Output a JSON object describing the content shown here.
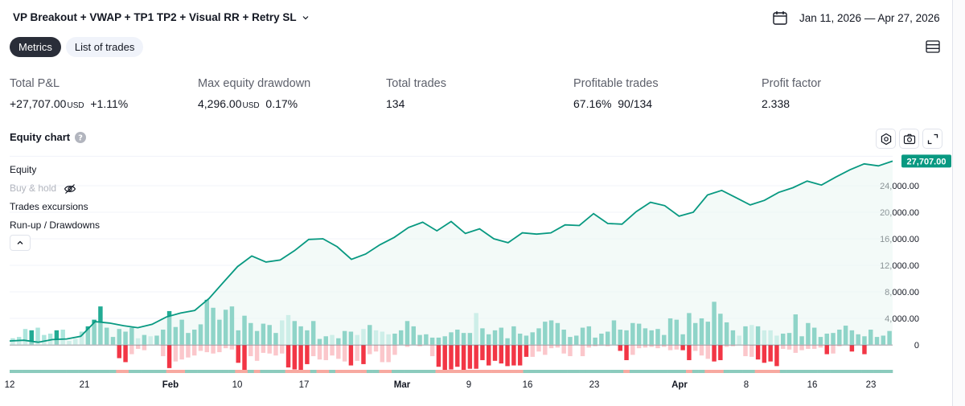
{
  "header": {
    "strategy_title": "VP Breakout + VWAP + TP1 TP2 + Visual RR + Retry SL",
    "date_range": "Jan 11, 2026 — Apr 27, 2026"
  },
  "tabs": [
    {
      "label": "Metrics",
      "active": true
    },
    {
      "label": "List of trades",
      "active": false
    }
  ],
  "metrics": [
    {
      "label": "Total P&L",
      "value": "+27,707.00",
      "unit": "USD",
      "extra": "+1.11%"
    },
    {
      "label": "Max equity drawdown",
      "value": "4,296.00",
      "unit": "USD",
      "extra": "0.17%"
    },
    {
      "label": "Total trades",
      "value": "134"
    },
    {
      "label": "Profitable trades",
      "value": "67.16%",
      "extra": "90/134"
    },
    {
      "label": "Profit factor",
      "value": "2.338"
    }
  ],
  "equity_chart": {
    "title": "Equity chart",
    "legend": [
      "Equity",
      "Buy & hold",
      "Trades excursions",
      "Run-up / Drawdowns"
    ],
    "last_value_label": "27,707.00"
  },
  "colors": {
    "equity_line": "#089981",
    "equity_fill": "#eaf5f3",
    "runup_bar": "#22ab94",
    "runup_bar_light": "#ace5dc",
    "drawdown_bar": "#f23645",
    "drawdown_bar_light": "#fbc7cb",
    "price_tag": "#089981"
  },
  "chart_data": {
    "type": "line",
    "title": "Equity chart",
    "ylim": [
      0,
      30000
    ],
    "y_ticks": [
      0,
      4000,
      8000,
      12000,
      16000,
      20000,
      24000
    ],
    "y_tick_labels": [
      "0",
      "4,000.00",
      "8,000.00",
      "12,000.00",
      "16,000.00",
      "20,000.00",
      "24,000.00"
    ],
    "x_ticks": [
      "12",
      "21",
      "Feb",
      "10",
      "17",
      "Mar",
      "9",
      "16",
      "23",
      "Apr",
      "8",
      "16",
      "23"
    ],
    "series": [
      {
        "name": "Equity",
        "values": [
          600,
          700,
          400,
          800,
          900,
          1300,
          3500,
          3300,
          2900,
          2600,
          3100,
          4200,
          4800,
          5200,
          7000,
          9400,
          11800,
          13400,
          12500,
          12800,
          14200,
          15900,
          16000,
          14800,
          12900,
          13700,
          15100,
          16200,
          17700,
          18500,
          17200,
          18600,
          16800,
          17500,
          16000,
          15400,
          16900,
          16700,
          16900,
          18100,
          18000,
          19800,
          18300,
          18200,
          20100,
          21500,
          21000,
          19400,
          20000,
          22600,
          23300,
          22200,
          21100,
          21800,
          23000,
          23700,
          24700,
          24100,
          25300,
          26400,
          27300,
          27000,
          27707
        ]
      }
    ],
    "run_up_bars": [
      [
        1000,
        "L"
      ],
      [
        1200,
        "L"
      ],
      [
        2400,
        "L"
      ],
      [
        2200,
        "D"
      ],
      [
        2600,
        "L"
      ],
      [
        1500,
        "L"
      ],
      [
        1700,
        "L"
      ],
      [
        2200,
        "D"
      ],
      [
        2300,
        "L"
      ],
      [
        600,
        "L"
      ],
      [
        900,
        "L"
      ],
      [
        2000,
        "L"
      ],
      [
        2800,
        "D"
      ],
      [
        3800,
        "D"
      ],
      [
        5800,
        "D"
      ],
      [
        2600,
        "D"
      ],
      [
        1200,
        "D"
      ],
      [
        2400,
        "D"
      ],
      [
        2000,
        "D"
      ],
      [
        2600,
        "D"
      ],
      [
        1000,
        "L"
      ],
      [
        1500,
        "D"
      ],
      [
        1300,
        "L"
      ],
      [
        1400,
        "D"
      ],
      [
        2300,
        "D"
      ],
      [
        5100,
        "D"
      ],
      [
        2700,
        "D"
      ],
      [
        3800,
        "D"
      ],
      [
        1800,
        "D"
      ],
      [
        2300,
        "D"
      ],
      [
        3100,
        "D"
      ],
      [
        6800,
        "D"
      ],
      [
        5600,
        "D"
      ],
      [
        3800,
        "D"
      ],
      [
        5300,
        "D"
      ],
      [
        5800,
        "D"
      ],
      [
        2200,
        "D"
      ],
      [
        4400,
        "D"
      ],
      [
        3300,
        "D"
      ],
      [
        2100,
        "D"
      ],
      [
        3200,
        "D"
      ],
      [
        3000,
        "D"
      ],
      [
        1800,
        "D"
      ],
      [
        3700,
        "L"
      ],
      [
        4500,
        "L"
      ],
      [
        3600,
        "D"
      ],
      [
        2800,
        "D"
      ],
      [
        2200,
        "D"
      ],
      [
        3600,
        "D"
      ],
      [
        900,
        "D"
      ],
      [
        1300,
        "D"
      ],
      [
        1500,
        "L"
      ],
      [
        1000,
        "D"
      ],
      [
        2100,
        "D"
      ],
      [
        2000,
        "D"
      ],
      [
        1500,
        "L"
      ],
      [
        2400,
        "L"
      ],
      [
        3000,
        "D"
      ],
      [
        2200,
        "L"
      ],
      [
        2000,
        "L"
      ],
      [
        1600,
        "L"
      ],
      [
        1700,
        "D"
      ],
      [
        2200,
        "D"
      ],
      [
        3600,
        "D"
      ],
      [
        2800,
        "D"
      ],
      [
        1500,
        "D"
      ],
      [
        1600,
        "D"
      ],
      [
        1100,
        "D"
      ],
      [
        1100,
        "D"
      ],
      [
        1300,
        "D"
      ],
      [
        1900,
        "D"
      ],
      [
        2300,
        "D"
      ],
      [
        1800,
        "D"
      ],
      [
        1800,
        "D"
      ],
      [
        4800,
        "L"
      ],
      [
        2500,
        "D"
      ],
      [
        1600,
        "D"
      ],
      [
        2200,
        "D"
      ],
      [
        2600,
        "D"
      ],
      [
        1000,
        "D"
      ],
      [
        2800,
        "D"
      ],
      [
        1700,
        "D"
      ],
      [
        1400,
        "D"
      ],
      [
        1900,
        "D"
      ],
      [
        2500,
        "D"
      ],
      [
        3500,
        "D"
      ],
      [
        3700,
        "D"
      ],
      [
        3300,
        "D"
      ],
      [
        2300,
        "D"
      ],
      [
        1200,
        "D"
      ],
      [
        1400,
        "D"
      ],
      [
        2600,
        "D"
      ],
      [
        2800,
        "D"
      ],
      [
        1100,
        "D"
      ],
      [
        1700,
        "D"
      ],
      [
        2000,
        "D"
      ],
      [
        3700,
        "D"
      ],
      [
        2300,
        "D"
      ],
      [
        2200,
        "D"
      ],
      [
        3300,
        "D"
      ],
      [
        3200,
        "D"
      ],
      [
        2500,
        "D"
      ],
      [
        2200,
        "D"
      ],
      [
        2400,
        "D"
      ],
      [
        1500,
        "D"
      ],
      [
        4000,
        "D"
      ],
      [
        3800,
        "D"
      ],
      [
        1600,
        "D"
      ],
      [
        4800,
        "D"
      ],
      [
        3300,
        "D"
      ],
      [
        4000,
        "D"
      ],
      [
        3500,
        "D"
      ],
      [
        6500,
        "D"
      ],
      [
        4700,
        "D"
      ],
      [
        3400,
        "D"
      ],
      [
        2200,
        "D"
      ],
      [
        1400,
        "L"
      ],
      [
        2800,
        "D"
      ],
      [
        3000,
        "L"
      ],
      [
        2800,
        "D"
      ],
      [
        2200,
        "L"
      ],
      [
        2200,
        "L"
      ],
      [
        1400,
        "L"
      ],
      [
        1700,
        "D"
      ],
      [
        1800,
        "D"
      ],
      [
        4600,
        "D"
      ],
      [
        1300,
        "D"
      ],
      [
        3300,
        "D"
      ],
      [
        2600,
        "D"
      ],
      [
        1200,
        "D"
      ],
      [
        1700,
        "D"
      ],
      [
        1800,
        "D"
      ],
      [
        2300,
        "D"
      ],
      [
        2900,
        "D"
      ],
      [
        2200,
        "D"
      ],
      [
        1600,
        "D"
      ],
      [
        1300,
        "D"
      ],
      [
        2300,
        "D"
      ],
      [
        1200,
        "D"
      ],
      [
        1400,
        "D"
      ],
      [
        2100,
        "D"
      ]
    ],
    "drawdown_bars": [
      [
        0,
        "L"
      ],
      [
        0,
        "L"
      ],
      [
        0,
        "L"
      ],
      [
        0,
        "L"
      ],
      [
        0,
        "L"
      ],
      [
        0,
        "L"
      ],
      [
        0,
        "L"
      ],
      [
        0,
        "L"
      ],
      [
        0,
        "L"
      ],
      [
        0,
        "L"
      ],
      [
        0,
        "L"
      ],
      [
        0,
        "L"
      ],
      [
        0,
        "L"
      ],
      [
        0,
        "L"
      ],
      [
        0,
        "L"
      ],
      [
        0,
        "D"
      ],
      [
        0,
        "L"
      ],
      [
        -2000,
        "D"
      ],
      [
        -2600,
        "D"
      ],
      [
        -1400,
        "L"
      ],
      [
        -600,
        "L"
      ],
      [
        -800,
        "L"
      ],
      [
        0,
        "L"
      ],
      [
        0,
        "L"
      ],
      [
        -1700,
        "L"
      ],
      [
        -3500,
        "D"
      ],
      [
        -2500,
        "L"
      ],
      [
        -2200,
        "L"
      ],
      [
        -1900,
        "L"
      ],
      [
        -1600,
        "L"
      ],
      [
        -900,
        "L"
      ],
      [
        -1100,
        "L"
      ],
      [
        -1300,
        "L"
      ],
      [
        -1100,
        "L"
      ],
      [
        -500,
        "L"
      ],
      [
        -700,
        "L"
      ],
      [
        -2700,
        "D"
      ],
      [
        -3900,
        "D"
      ],
      [
        -1700,
        "L"
      ],
      [
        -2400,
        "L"
      ],
      [
        -1200,
        "L"
      ],
      [
        -1300,
        "L"
      ],
      [
        -1600,
        "L"
      ],
      [
        -1300,
        "L"
      ],
      [
        -3400,
        "D"
      ],
      [
        -3700,
        "D"
      ],
      [
        -3900,
        "D"
      ],
      [
        -2900,
        "D"
      ],
      [
        -1700,
        "L"
      ],
      [
        -2200,
        "L"
      ],
      [
        -2300,
        "L"
      ],
      [
        -1600,
        "L"
      ],
      [
        -2100,
        "L"
      ],
      [
        -2500,
        "L"
      ],
      [
        -3100,
        "D"
      ],
      [
        -2400,
        "L"
      ],
      [
        -2900,
        "D"
      ],
      [
        -1400,
        "L"
      ],
      [
        -1000,
        "L"
      ],
      [
        -2600,
        "L"
      ],
      [
        -2600,
        "L"
      ],
      [
        -1500,
        "L"
      ],
      [
        0,
        "L"
      ],
      [
        -300,
        "L"
      ],
      [
        0,
        "L"
      ],
      [
        -200,
        "L"
      ],
      [
        0,
        "L"
      ],
      [
        -1700,
        "L"
      ],
      [
        -3300,
        "D"
      ],
      [
        -3800,
        "D"
      ],
      [
        -3700,
        "D"
      ],
      [
        -3300,
        "D"
      ],
      [
        -4100,
        "D"
      ],
      [
        -3600,
        "D"
      ],
      [
        -3600,
        "D"
      ],
      [
        -2300,
        "D"
      ],
      [
        -3100,
        "D"
      ],
      [
        -2400,
        "D"
      ],
      [
        -2800,
        "D"
      ],
      [
        -3200,
        "D"
      ],
      [
        -3100,
        "D"
      ],
      [
        -3100,
        "D"
      ],
      [
        -1800,
        "D"
      ],
      [
        -1800,
        "L"
      ],
      [
        -1000,
        "L"
      ],
      [
        -1500,
        "L"
      ],
      [
        -500,
        "L"
      ],
      [
        -400,
        "L"
      ],
      [
        -1300,
        "L"
      ],
      [
        -1700,
        "L"
      ],
      [
        0,
        "L"
      ],
      [
        -1700,
        "L"
      ],
      [
        -400,
        "L"
      ],
      [
        -200,
        "L"
      ],
      [
        -100,
        "L"
      ],
      [
        -200,
        "L"
      ],
      [
        0,
        "L"
      ],
      [
        -900,
        "D"
      ],
      [
        -2300,
        "D"
      ],
      [
        -1500,
        "L"
      ],
      [
        -500,
        "L"
      ],
      [
        -400,
        "L"
      ],
      [
        -300,
        "L"
      ],
      [
        -500,
        "L"
      ],
      [
        -300,
        "L"
      ],
      [
        -800,
        "L"
      ],
      [
        -700,
        "L"
      ],
      [
        -800,
        "D"
      ],
      [
        -2300,
        "D"
      ],
      [
        -900,
        "L"
      ],
      [
        -1600,
        "L"
      ],
      [
        -2100,
        "L"
      ],
      [
        -2500,
        "D"
      ],
      [
        -2300,
        "D"
      ],
      [
        -300,
        "L"
      ],
      [
        -200,
        "L"
      ],
      [
        0,
        "L"
      ],
      [
        -1700,
        "L"
      ],
      [
        -1800,
        "L"
      ],
      [
        -2200,
        "D"
      ],
      [
        -2700,
        "D"
      ],
      [
        -2500,
        "D"
      ],
      [
        -3200,
        "D"
      ],
      [
        -600,
        "L"
      ],
      [
        -700,
        "L"
      ],
      [
        -1200,
        "L"
      ],
      [
        -800,
        "L"
      ],
      [
        -600,
        "L"
      ],
      [
        -600,
        "L"
      ],
      [
        -400,
        "L"
      ],
      [
        -1400,
        "D"
      ],
      [
        -1300,
        "L"
      ],
      [
        -200,
        "L"
      ],
      [
        0,
        "L"
      ],
      [
        -1000,
        "D"
      ],
      [
        0,
        "L"
      ],
      [
        -1400,
        "D"
      ],
      [
        0,
        "L"
      ],
      [
        0,
        "L"
      ],
      [
        0,
        "L"
      ]
    ]
  }
}
